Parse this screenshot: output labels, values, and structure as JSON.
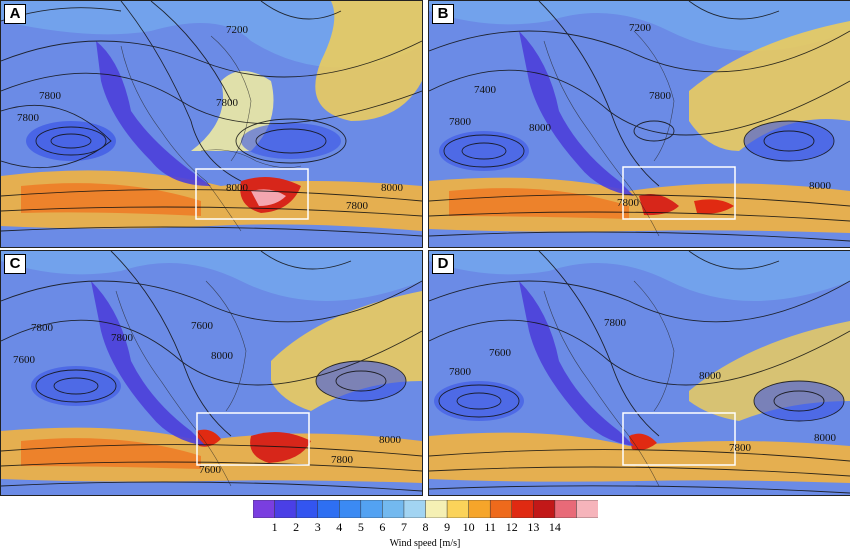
{
  "panels": [
    {
      "letter": "A",
      "contours": [
        "7200",
        "7800",
        "7800",
        "8000",
        "7800",
        "8000",
        "7800"
      ]
    },
    {
      "letter": "B",
      "contours": [
        "7200",
        "7400",
        "7800",
        "7800",
        "8000",
        "8000",
        "7800"
      ]
    },
    {
      "letter": "C",
      "contours": [
        "7600",
        "7800",
        "7600",
        "8000",
        "7800",
        "8000",
        "7800",
        "7600"
      ]
    },
    {
      "letter": "D",
      "contours": [
        "7600",
        "7800",
        "7800",
        "8000",
        "7800",
        "8000"
      ]
    }
  ],
  "colorbar": {
    "label": "Wind speed [m/s]",
    "ticks": [
      "1",
      "2",
      "3",
      "4",
      "5",
      "6",
      "7",
      "8",
      "9",
      "10",
      "11",
      "12",
      "13",
      "14"
    ],
    "colors": [
      "#7a3ee0",
      "#4a3fe6",
      "#3355f0",
      "#2e6ff2",
      "#3b8af3",
      "#53a2f2",
      "#73b9ef",
      "#a2d4f2",
      "#f5f0b4",
      "#fbd35a",
      "#f6a52a",
      "#ee6a1c",
      "#e02a12",
      "#c21818",
      "#e86a78",
      "#f6b4bb"
    ]
  }
}
